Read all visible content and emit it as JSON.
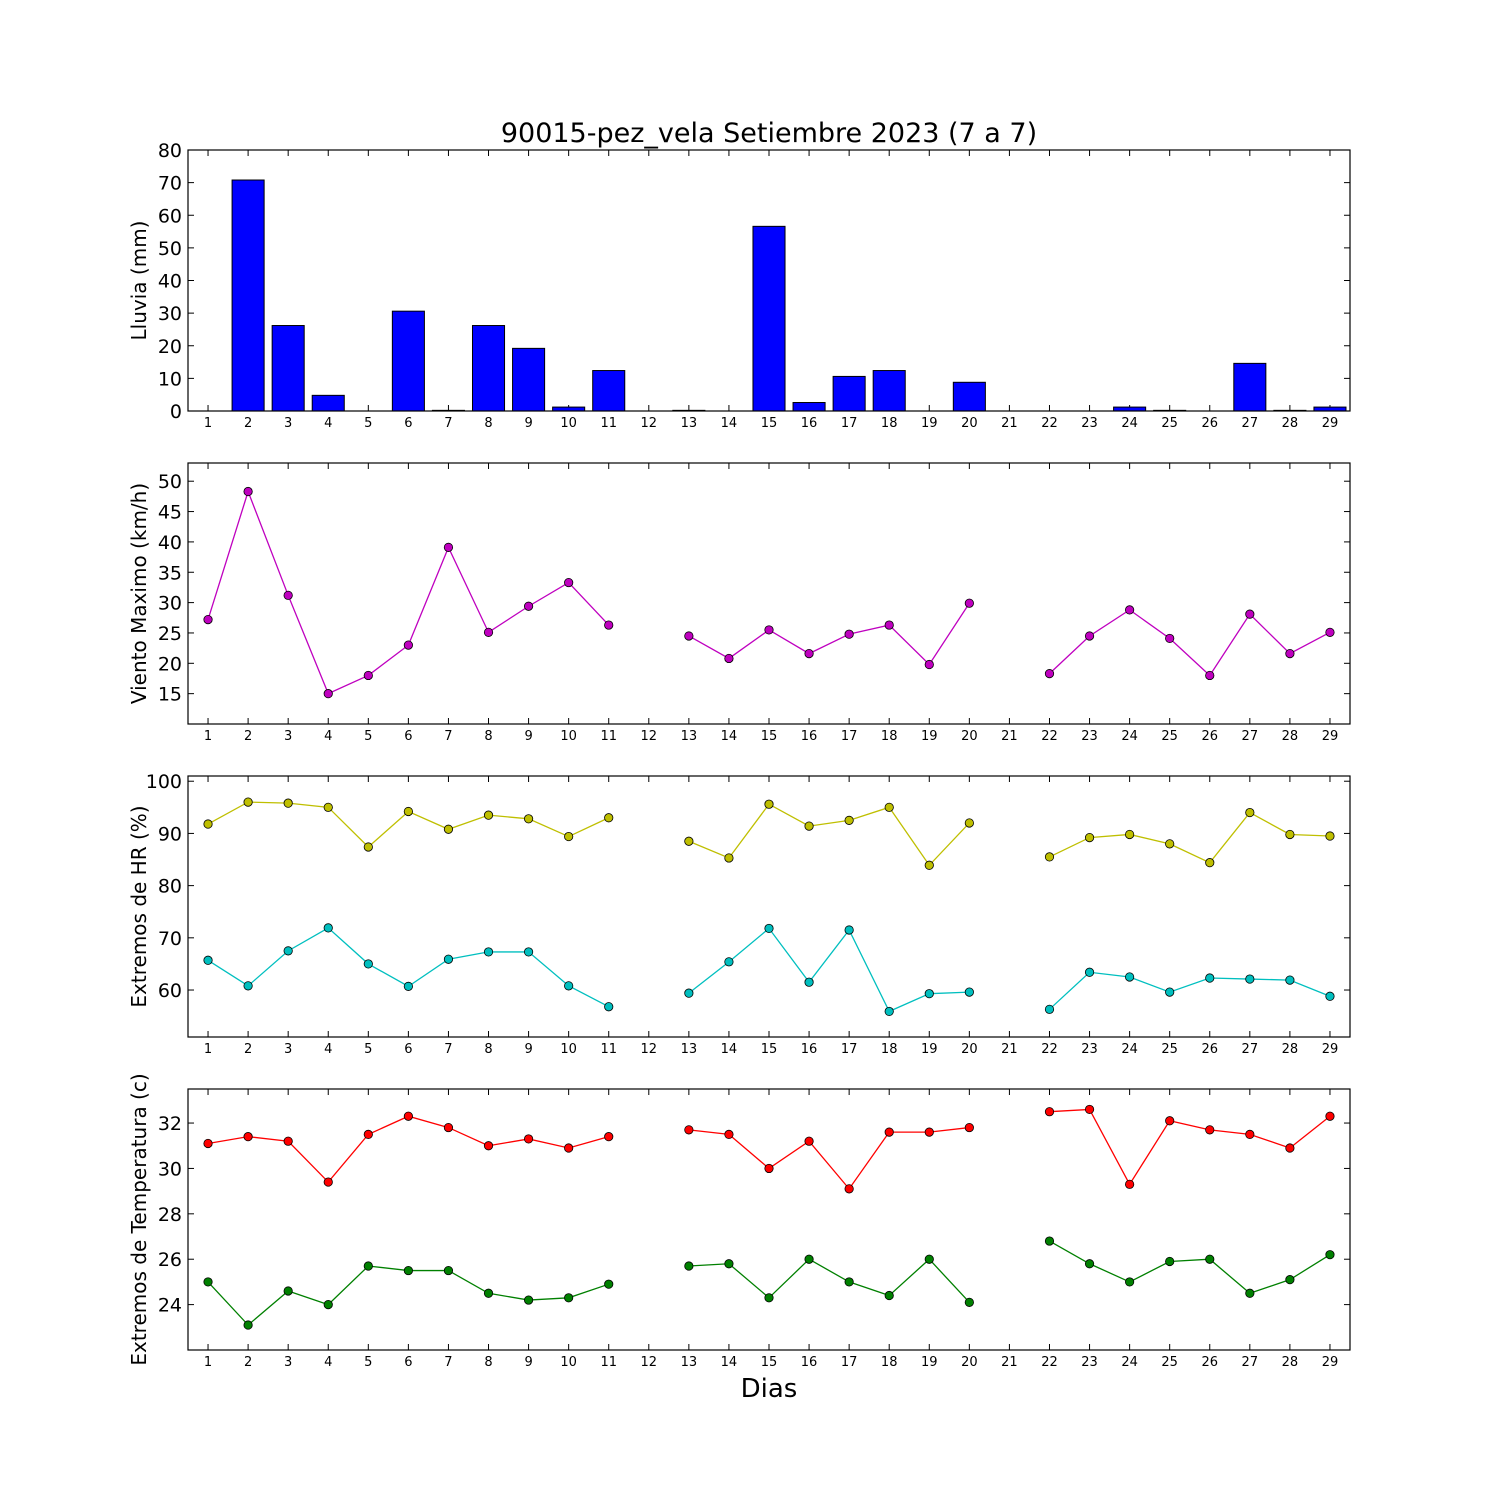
{
  "title": "90015-pez_vela Setiembre 2023  (7 a 7)",
  "xlabel": "Dias",
  "colors": {
    "lluvia": "#0000ff",
    "viento": "#bf00bf",
    "hr_max": "#bfbf00",
    "hr_min": "#00bfbf",
    "temp_max": "#ff0000",
    "temp_min": "#008000"
  },
  "chart_data": [
    {
      "type": "bar",
      "ylabel": "Lluvia (mm)",
      "ylim": [
        0,
        80
      ],
      "yticks": [
        0,
        10,
        20,
        30,
        40,
        50,
        60,
        70,
        80
      ],
      "xlim": [
        0.5,
        29.5
      ],
      "x": [
        1,
        2,
        3,
        4,
        5,
        6,
        7,
        8,
        9,
        10,
        11,
        12,
        13,
        14,
        15,
        16,
        17,
        18,
        19,
        20,
        21,
        22,
        23,
        24,
        25,
        26,
        27,
        28,
        29
      ],
      "series": [
        {
          "color": "#0000ff",
          "values": [
            0,
            70.8,
            26.2,
            4.8,
            0,
            30.6,
            0.2,
            26.2,
            19.2,
            1.2,
            12.4,
            0,
            0.2,
            0,
            56.6,
            2.6,
            10.6,
            12.4,
            0,
            8.8,
            0,
            0,
            0,
            1.2,
            0.2,
            0,
            14.6,
            0.2,
            1.2
          ]
        }
      ]
    },
    {
      "type": "line",
      "ylabel": "Viento Maximo (km/h)",
      "ylim": [
        10,
        53
      ],
      "yticks": [
        15,
        20,
        25,
        30,
        35,
        40,
        45,
        50
      ],
      "xlim": [
        0.5,
        29.5
      ],
      "x": [
        1,
        2,
        3,
        4,
        5,
        6,
        7,
        8,
        9,
        10,
        11,
        12,
        13,
        14,
        15,
        16,
        17,
        18,
        19,
        20,
        21,
        22,
        23,
        24,
        25,
        26,
        27,
        28,
        29
      ],
      "series": [
        {
          "color": "#bf00bf",
          "values": [
            27.2,
            48.3,
            31.2,
            15.0,
            18.0,
            23.0,
            39.1,
            25.1,
            29.4,
            33.3,
            26.3,
            null,
            24.5,
            20.8,
            25.5,
            21.6,
            24.8,
            26.3,
            19.8,
            29.9,
            null,
            18.3,
            24.5,
            28.8,
            24.1,
            18.0,
            28.1,
            21.6,
            25.1
          ]
        }
      ]
    },
    {
      "type": "line",
      "ylabel": "Extremos de HR (%)",
      "ylim": [
        51,
        101
      ],
      "yticks": [
        60,
        70,
        80,
        90,
        100
      ],
      "xlim": [
        0.5,
        29.5
      ],
      "x": [
        1,
        2,
        3,
        4,
        5,
        6,
        7,
        8,
        9,
        10,
        11,
        12,
        13,
        14,
        15,
        16,
        17,
        18,
        19,
        20,
        21,
        22,
        23,
        24,
        25,
        26,
        27,
        28,
        29
      ],
      "series": [
        {
          "color": "#bfbf00",
          "values": [
            91.8,
            96.0,
            95.8,
            95.0,
            87.4,
            94.2,
            90.8,
            93.5,
            92.8,
            89.4,
            93.0,
            null,
            88.5,
            85.3,
            95.6,
            91.4,
            92.5,
            95.0,
            83.9,
            92.0,
            null,
            85.5,
            89.2,
            89.8,
            88.0,
            84.4,
            94.0,
            89.8,
            89.5
          ]
        },
        {
          "color": "#00bfbf",
          "values": [
            65.7,
            60.8,
            67.5,
            71.9,
            65.0,
            60.7,
            65.9,
            67.3,
            67.3,
            60.8,
            56.8,
            null,
            59.4,
            65.4,
            71.8,
            61.5,
            71.5,
            55.9,
            59.3,
            59.6,
            null,
            56.3,
            63.4,
            62.5,
            59.6,
            62.3,
            62.1,
            61.9,
            58.8
          ]
        }
      ]
    },
    {
      "type": "line",
      "ylabel": "Extremos de Temperatura (c)",
      "ylim": [
        22,
        33.5
      ],
      "yticks": [
        24,
        26,
        28,
        30,
        32
      ],
      "xlim": [
        0.5,
        29.5
      ],
      "x": [
        1,
        2,
        3,
        4,
        5,
        6,
        7,
        8,
        9,
        10,
        11,
        12,
        13,
        14,
        15,
        16,
        17,
        18,
        19,
        20,
        21,
        22,
        23,
        24,
        25,
        26,
        27,
        28,
        29
      ],
      "series": [
        {
          "color": "#ff0000",
          "values": [
            31.1,
            31.4,
            31.2,
            29.4,
            31.5,
            32.3,
            31.8,
            31.0,
            31.3,
            30.9,
            31.4,
            null,
            31.7,
            31.5,
            30.0,
            31.2,
            29.1,
            31.6,
            31.6,
            31.8,
            null,
            32.5,
            32.6,
            29.3,
            32.1,
            31.7,
            31.5,
            30.9,
            32.3
          ]
        },
        {
          "color": "#008000",
          "values": [
            25.0,
            23.1,
            24.6,
            24.0,
            25.7,
            25.5,
            25.5,
            24.5,
            24.2,
            24.3,
            24.9,
            null,
            25.7,
            25.8,
            24.3,
            26.0,
            25.0,
            24.4,
            26.0,
            24.1,
            null,
            26.8,
            25.8,
            25.0,
            25.9,
            26.0,
            24.5,
            25.1,
            26.2
          ]
        }
      ]
    }
  ]
}
